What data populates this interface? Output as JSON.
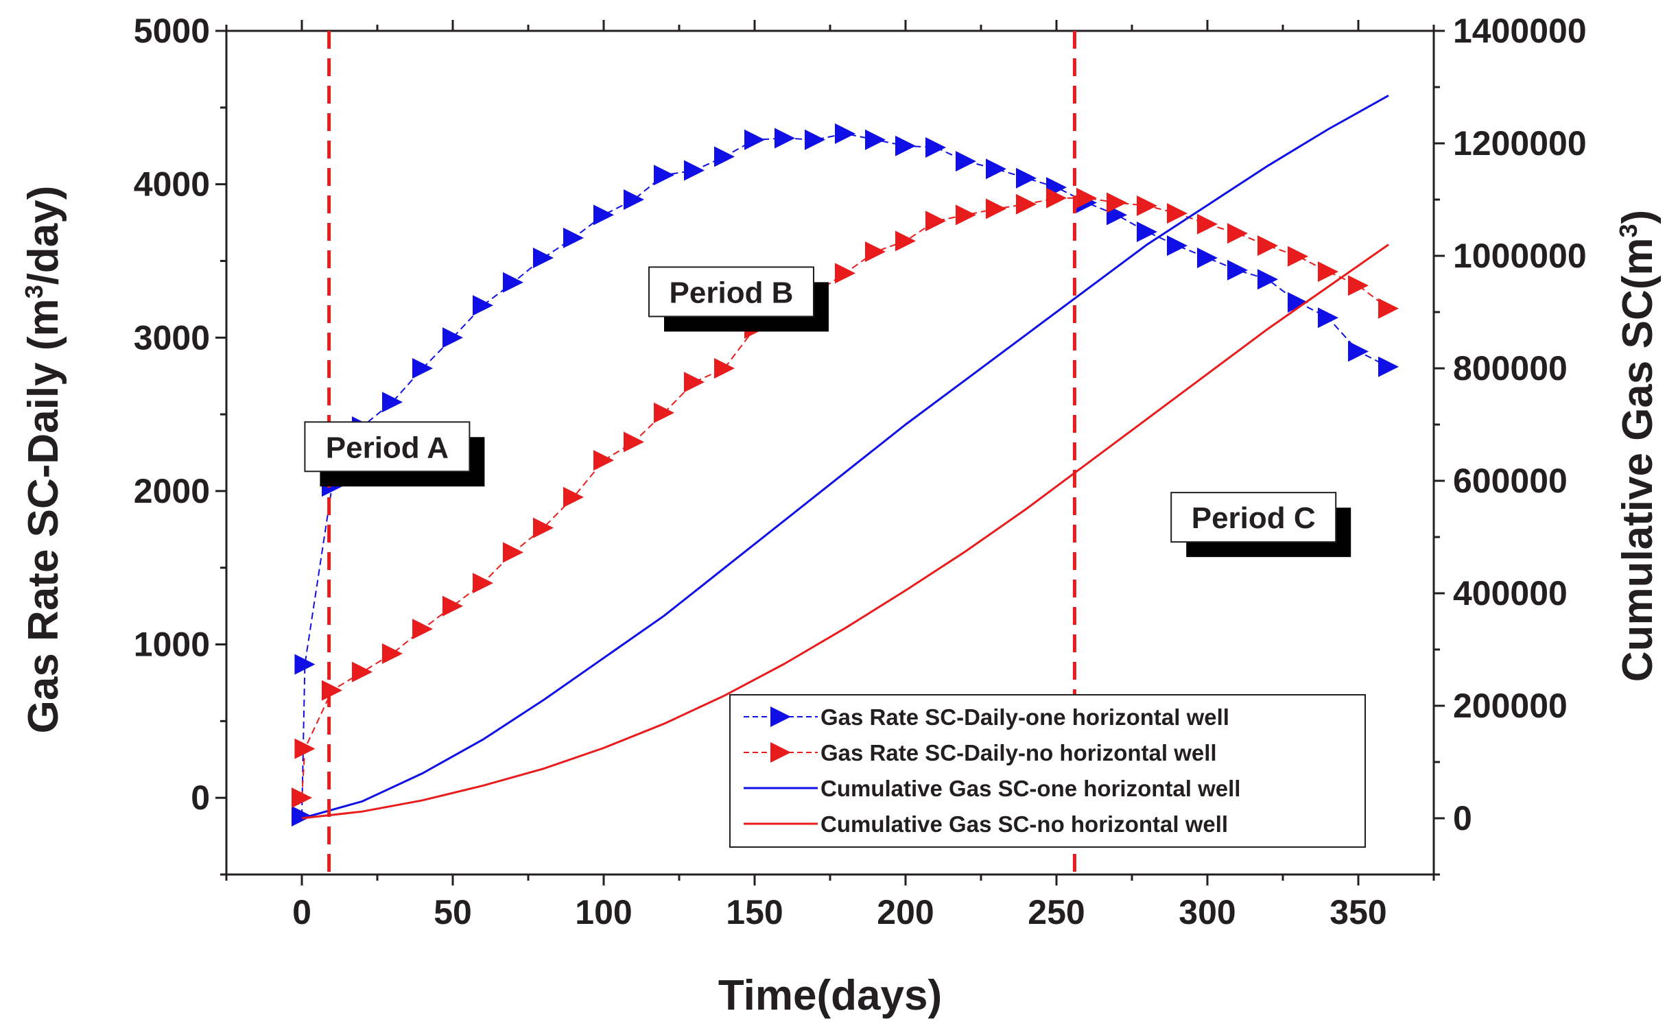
{
  "chart_data": {
    "type": "line",
    "xlabel": "Time(days)",
    "ylabel_left_prefix": "Gas Rate SC-Daily (m",
    "ylabel_left_sup": "3",
    "ylabel_left_suffix": "/day)",
    "ylabel_right_prefix": "Cumulative Gas SC(m",
    "ylabel_right_sup": "3",
    "ylabel_right_suffix": ")",
    "xlim": [
      -25,
      375
    ],
    "ylim_left": [
      -500,
      5000
    ],
    "ylim_right": [
      -100000,
      1400000
    ],
    "x_ticks": [
      0,
      50,
      100,
      150,
      200,
      250,
      300,
      350
    ],
    "x_tick_labels": [
      "0",
      "50",
      "100",
      "150",
      "200",
      "250",
      "300",
      "350"
    ],
    "y_left_ticks": [
      0,
      1000,
      2000,
      3000,
      4000,
      5000
    ],
    "y_left_tick_labels": [
      "0",
      "1000",
      "2000",
      "3000",
      "4000",
      "5000"
    ],
    "y_right_ticks": [
      0,
      200000,
      400000,
      600000,
      800000,
      1000000,
      1200000,
      1400000
    ],
    "y_right_tick_labels": [
      "0",
      "200000",
      "400000",
      "600000",
      "800000",
      "1000000",
      "1200000",
      "1400000"
    ],
    "vlines": [
      9,
      256
    ],
    "annotations": [
      {
        "text": "Period A",
        "x": 1,
        "y": 2450
      },
      {
        "text": "Period B",
        "x": 115,
        "y": 3460
      },
      {
        "text": "Period C",
        "x": 288,
        "y": 1990
      }
    ],
    "series": [
      {
        "name": "Gas Rate SC-Daily-one horizontal well",
        "axis": "left",
        "color": "#1010e6",
        "style": "triangle-dash",
        "x": [
          0,
          1,
          10,
          20,
          30,
          40,
          50,
          60,
          70,
          80,
          90,
          100,
          110,
          120,
          130,
          140,
          150,
          160,
          170,
          180,
          190,
          200,
          210,
          220,
          230,
          240,
          250,
          260,
          270,
          280,
          290,
          300,
          310,
          320,
          330,
          340,
          350,
          360
        ],
        "y": [
          -120,
          870,
          2030,
          2420,
          2580,
          2800,
          3000,
          3210,
          3360,
          3520,
          3650,
          3800,
          3900,
          4060,
          4090,
          4180,
          4290,
          4300,
          4290,
          4330,
          4290,
          4250,
          4240,
          4150,
          4100,
          4040,
          3980,
          3880,
          3800,
          3690,
          3600,
          3520,
          3440,
          3380,
          3230,
          3130,
          2910,
          2810
        ]
      },
      {
        "name": "Gas Rate SC-Daily-no horizontal well",
        "axis": "left",
        "color": "#e81c1c",
        "style": "triangle-dash",
        "x": [
          0,
          1,
          10,
          20,
          30,
          40,
          50,
          60,
          70,
          80,
          90,
          100,
          110,
          120,
          130,
          140,
          150,
          160,
          170,
          180,
          190,
          200,
          210,
          220,
          230,
          240,
          250,
          260,
          270,
          280,
          290,
          300,
          310,
          320,
          330,
          340,
          350,
          360
        ],
        "y": [
          0,
          320,
          700,
          820,
          940,
          1100,
          1250,
          1400,
          1600,
          1760,
          1960,
          2200,
          2320,
          2510,
          2710,
          2800,
          3060,
          3200,
          3290,
          3420,
          3560,
          3630,
          3760,
          3800,
          3840,
          3870,
          3910,
          3910,
          3880,
          3860,
          3810,
          3740,
          3680,
          3600,
          3530,
          3430,
          3340,
          3190
        ]
      },
      {
        "name": "Cumulative Gas SC-one horizontal well",
        "axis": "right",
        "color": "#1010e6",
        "style": "solid",
        "x": [
          0,
          20,
          40,
          60,
          80,
          100,
          120,
          140,
          160,
          180,
          200,
          220,
          240,
          260,
          280,
          300,
          320,
          340,
          360
        ],
        "y": [
          0,
          30000,
          80000,
          140000,
          210000,
          285000,
          360000,
          445000,
          530000,
          615000,
          700000,
          780000,
          860000,
          940000,
          1020000,
          1090000,
          1160000,
          1225000,
          1285000
        ]
      },
      {
        "name": "Cumulative Gas SC-no horizontal well",
        "axis": "right",
        "color": "#e81c1c",
        "style": "solid",
        "x": [
          0,
          20,
          40,
          60,
          80,
          100,
          120,
          140,
          160,
          180,
          200,
          220,
          240,
          260,
          280,
          300,
          320,
          340,
          360
        ],
        "y": [
          0,
          12000,
          32000,
          58000,
          88000,
          125000,
          168000,
          218000,
          275000,
          338000,
          405000,
          475000,
          550000,
          630000,
          710000,
          790000,
          870000,
          945000,
          1020000
        ]
      }
    ]
  }
}
